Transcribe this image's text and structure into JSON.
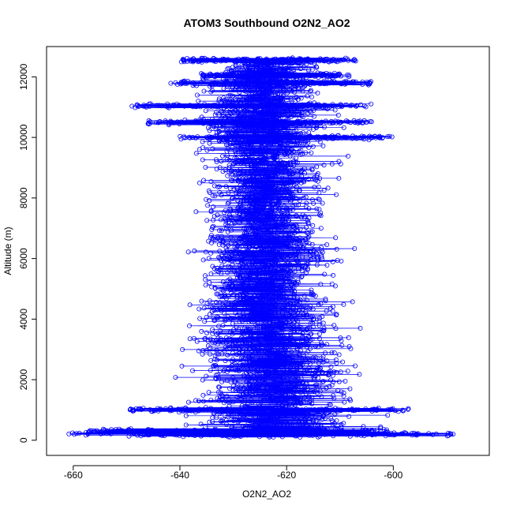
{
  "chart_data": {
    "type": "scatter",
    "title": "ATOM3 Southbound O2N2_AO2",
    "xlabel": "O2N2_AO2",
    "ylabel": "Altitude (m)",
    "xlim": [
      -665,
      -582
    ],
    "ylim": [
      -500,
      13000
    ],
    "x_ticks": [
      -660,
      -640,
      -620,
      -600
    ],
    "y_ticks": [
      0,
      2000,
      4000,
      6000,
      8000,
      10000,
      12000
    ],
    "x_tick_labels": [
      "-660",
      "-640",
      "-620",
      "-600"
    ],
    "y_tick_labels": [
      "0",
      "2000",
      "4000",
      "6000",
      "8000",
      "10000",
      "12000"
    ],
    "series_color": "#0000ff",
    "marker": "open-circle",
    "connected": true,
    "envelope": [
      {
        "alt": 200,
        "xmin": -661,
        "xmax": -588
      },
      {
        "alt": 800,
        "xmin": -655,
        "xmax": -592
      },
      {
        "alt": 1500,
        "xmin": -652,
        "xmax": -594
      },
      {
        "alt": 2500,
        "xmin": -650,
        "xmax": -595
      },
      {
        "alt": 3500,
        "xmin": -648,
        "xmax": -596
      },
      {
        "alt": 4500,
        "xmin": -644,
        "xmax": -597
      },
      {
        "alt": 5500,
        "xmin": -641,
        "xmax": -597
      },
      {
        "alt": 6200,
        "xmin": -646,
        "xmax": -593
      },
      {
        "alt": 7000,
        "xmin": -640,
        "xmax": -598
      },
      {
        "alt": 8000,
        "xmin": -640,
        "xmax": -598
      },
      {
        "alt": 9000,
        "xmin": -641,
        "xmax": -599
      },
      {
        "alt": 10000,
        "xmin": -646,
        "xmax": -599
      },
      {
        "alt": 10500,
        "xmin": -647,
        "xmax": -600
      },
      {
        "alt": 11000,
        "xmin": -649,
        "xmax": -600
      },
      {
        "alt": 11800,
        "xmin": -643,
        "xmax": -603
      },
      {
        "alt": 12600,
        "xmin": -640,
        "xmax": -606
      }
    ],
    "dense_bands": [
      {
        "alt": 200,
        "xmin": -661,
        "xmax": -588
      },
      {
        "alt": 300,
        "xmin": -658,
        "xmax": -600
      },
      {
        "alt": 1000,
        "xmin": -650,
        "xmax": -596
      },
      {
        "alt": 10000,
        "xmin": -640,
        "xmax": -600
      },
      {
        "alt": 10500,
        "xmin": -646,
        "xmax": -604
      },
      {
        "alt": 11050,
        "xmin": -649,
        "xmax": -604
      },
      {
        "alt": 11800,
        "xmin": -642,
        "xmax": -604
      },
      {
        "alt": 12050,
        "xmin": -636,
        "xmax": -608
      },
      {
        "alt": 12550,
        "xmin": -640,
        "xmax": -607
      }
    ]
  }
}
